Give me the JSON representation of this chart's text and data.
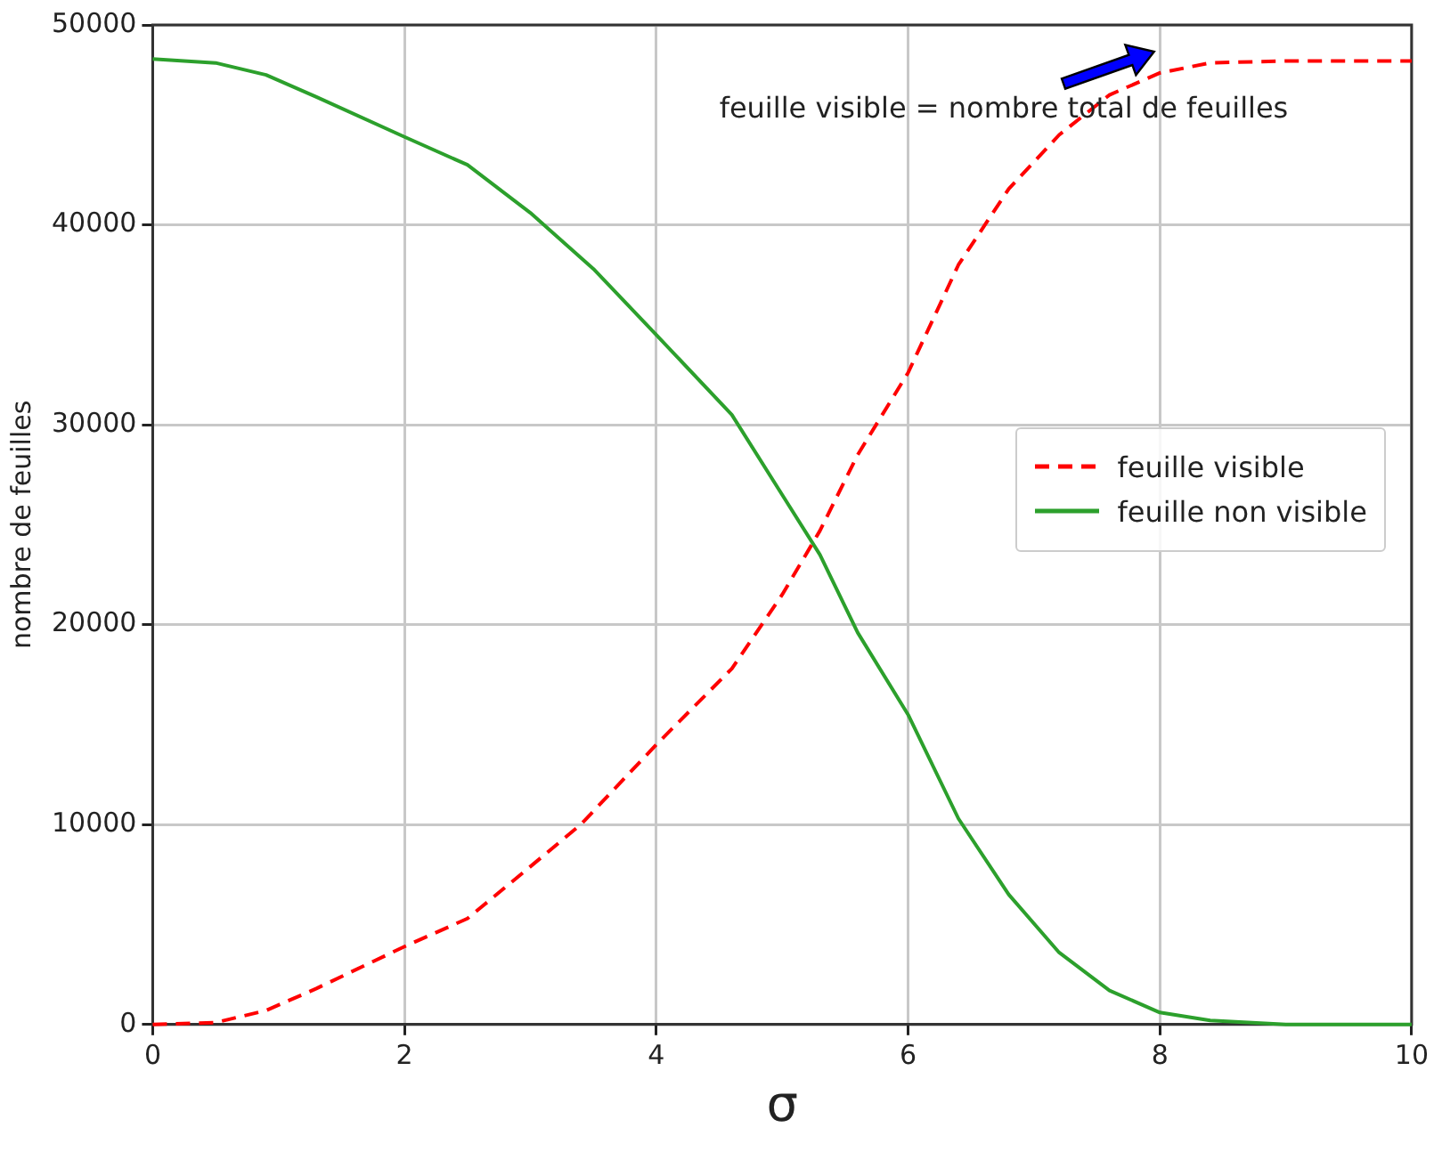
{
  "chart_data": {
    "type": "line",
    "xlabel": "σ",
    "ylabel": "nombre de feuilles",
    "xlim": [
      0,
      10
    ],
    "xticks": [
      0,
      2,
      4,
      6,
      8,
      10
    ],
    "ylim": [
      0,
      50000
    ],
    "yticks": [
      0,
      10000,
      20000,
      30000,
      40000,
      50000
    ],
    "grid": true,
    "legend": "right",
    "marker": "none",
    "annotations": [
      "feuille visible = nombre total de feuilles"
    ],
    "series": [
      {
        "name": "feuille visible",
        "color": "#ff0000",
        "line_style": "dashed",
        "x": [
          0,
          0.5,
          0.9,
          1.3,
          2,
          2.5,
          3,
          3.4,
          4,
          4.6,
          5,
          5.3,
          5.6,
          6,
          6.4,
          6.8,
          7.2,
          7.6,
          8,
          8.4,
          9,
          10
        ],
        "values": [
          0,
          100,
          700,
          1800,
          3900,
          5300,
          7900,
          10000,
          14000,
          17800,
          21500,
          24700,
          28500,
          32600,
          38000,
          41800,
          44500,
          46500,
          47600,
          48100,
          48200,
          48200
        ]
      },
      {
        "name": "feuille non visible",
        "color": "#2ca02c",
        "line_style": "solid",
        "x": [
          0,
          0.5,
          0.9,
          1.3,
          2,
          2.5,
          3,
          3.5,
          4,
          4.6,
          5,
          5.3,
          5.6,
          6,
          6.4,
          6.8,
          7.2,
          7.6,
          8,
          8.4,
          9,
          10
        ],
        "values": [
          48300,
          48100,
          47500,
          46400,
          44400,
          43000,
          40600,
          37800,
          34500,
          30500,
          26500,
          23500,
          19600,
          15500,
          10300,
          6500,
          3600,
          1700,
          600,
          200,
          0,
          0
        ]
      }
    ]
  }
}
